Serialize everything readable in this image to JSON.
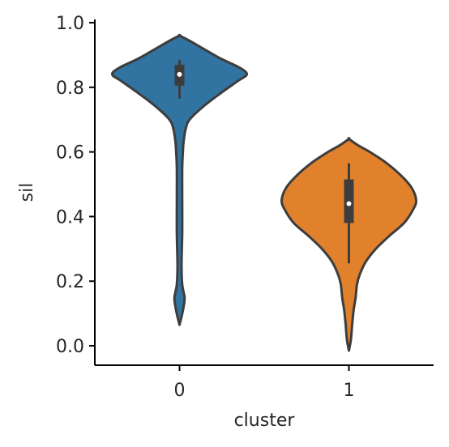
{
  "chart_data": {
    "type": "violin",
    "xlabel": "cluster",
    "ylabel": "sil",
    "categories": [
      "0",
      "1"
    ],
    "ylim": [
      -0.06,
      1.01
    ],
    "yticks": [
      0.0,
      0.2,
      0.4,
      0.6,
      0.8,
      1.0
    ],
    "ytick_labels": [
      "0.0",
      "0.2",
      "0.4",
      "0.6",
      "0.8",
      "1.0"
    ],
    "grid": false,
    "violins": [
      {
        "category": "0",
        "color": "#3274a1",
        "min": 0.065,
        "max": 0.96,
        "q1": 0.805,
        "median": 0.84,
        "q3": 0.87,
        "whisker_low": 0.765,
        "whisker_high": 0.885,
        "density": [
          [
            0.065,
            0.0
          ],
          [
            0.09,
            0.03
          ],
          [
            0.12,
            0.06
          ],
          [
            0.15,
            0.075
          ],
          [
            0.19,
            0.04
          ],
          [
            0.25,
            0.03
          ],
          [
            0.35,
            0.04
          ],
          [
            0.45,
            0.04
          ],
          [
            0.55,
            0.04
          ],
          [
            0.6,
            0.05
          ],
          [
            0.63,
            0.06
          ],
          [
            0.67,
            0.09
          ],
          [
            0.7,
            0.15
          ],
          [
            0.74,
            0.35
          ],
          [
            0.78,
            0.6
          ],
          [
            0.82,
            0.87
          ],
          [
            0.84,
            1.0
          ],
          [
            0.86,
            0.9
          ],
          [
            0.89,
            0.6
          ],
          [
            0.92,
            0.35
          ],
          [
            0.945,
            0.14
          ],
          [
            0.96,
            0.0
          ]
        ]
      },
      {
        "category": "1",
        "color": "#e1812c",
        "min": -0.015,
        "max": 0.64,
        "q1": 0.38,
        "median": 0.44,
        "q3": 0.515,
        "whisker_low": 0.255,
        "whisker_high": 0.565,
        "density": [
          [
            -0.015,
            0.0
          ],
          [
            0.02,
            0.03
          ],
          [
            0.07,
            0.05
          ],
          [
            0.11,
            0.07
          ],
          [
            0.15,
            0.1
          ],
          [
            0.19,
            0.12
          ],
          [
            0.22,
            0.16
          ],
          [
            0.26,
            0.25
          ],
          [
            0.3,
            0.4
          ],
          [
            0.34,
            0.6
          ],
          [
            0.38,
            0.82
          ],
          [
            0.42,
            0.95
          ],
          [
            0.45,
            1.0
          ],
          [
            0.49,
            0.93
          ],
          [
            0.53,
            0.76
          ],
          [
            0.57,
            0.53
          ],
          [
            0.6,
            0.31
          ],
          [
            0.62,
            0.14
          ],
          [
            0.64,
            0.0
          ]
        ]
      }
    ]
  }
}
